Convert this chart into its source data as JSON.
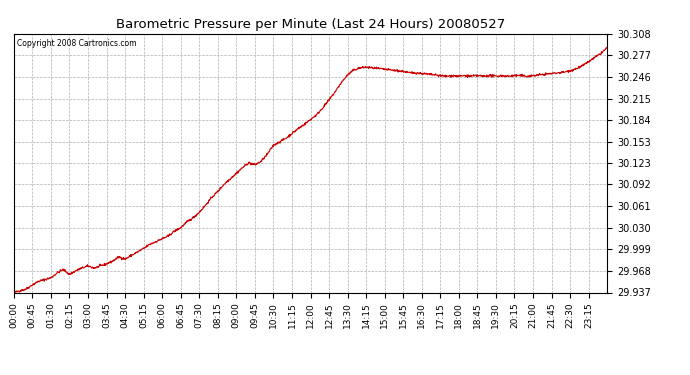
{
  "title": "Barometric Pressure per Minute (Last 24 Hours) 20080527",
  "copyright_text": "Copyright 2008 Cartronics.com",
  "line_color": "#cc0000",
  "background_color": "#ffffff",
  "grid_color": "#b0b0b0",
  "yticks": [
    29.937,
    29.968,
    29.999,
    30.03,
    30.061,
    30.092,
    30.123,
    30.153,
    30.184,
    30.215,
    30.246,
    30.277,
    30.308
  ],
  "ylim": [
    29.937,
    30.308
  ],
  "xtick_labels": [
    "00:00",
    "00:45",
    "01:30",
    "02:15",
    "03:00",
    "03:45",
    "04:30",
    "05:15",
    "06:00",
    "06:45",
    "07:30",
    "08:15",
    "09:00",
    "09:45",
    "10:30",
    "11:15",
    "12:00",
    "12:45",
    "13:30",
    "14:15",
    "15:00",
    "15:45",
    "16:30",
    "17:15",
    "18:00",
    "18:45",
    "19:30",
    "20:15",
    "21:00",
    "21:45",
    "22:30",
    "23:15"
  ],
  "key_points": [
    [
      0,
      29.937
    ],
    [
      30,
      29.942
    ],
    [
      45,
      29.948
    ],
    [
      60,
      29.953
    ],
    [
      90,
      29.958
    ],
    [
      105,
      29.965
    ],
    [
      120,
      29.97
    ],
    [
      135,
      29.963
    ],
    [
      150,
      29.968
    ],
    [
      165,
      29.972
    ],
    [
      180,
      29.975
    ],
    [
      195,
      29.972
    ],
    [
      210,
      29.975
    ],
    [
      225,
      29.978
    ],
    [
      240,
      29.982
    ],
    [
      255,
      29.988
    ],
    [
      270,
      29.985
    ],
    [
      285,
      29.99
    ],
    [
      300,
      29.995
    ],
    [
      315,
      30.0
    ],
    [
      330,
      30.006
    ],
    [
      345,
      30.01
    ],
    [
      360,
      30.014
    ],
    [
      375,
      30.018
    ],
    [
      390,
      30.025
    ],
    [
      405,
      30.03
    ],
    [
      420,
      30.038
    ],
    [
      435,
      30.044
    ],
    [
      450,
      30.052
    ],
    [
      465,
      30.062
    ],
    [
      480,
      30.073
    ],
    [
      495,
      30.082
    ],
    [
      510,
      30.092
    ],
    [
      525,
      30.1
    ],
    [
      540,
      30.108
    ],
    [
      555,
      30.116
    ],
    [
      570,
      30.123
    ],
    [
      585,
      30.12
    ],
    [
      600,
      30.125
    ],
    [
      615,
      30.135
    ],
    [
      630,
      30.148
    ],
    [
      645,
      30.153
    ],
    [
      660,
      30.158
    ],
    [
      675,
      30.165
    ],
    [
      690,
      30.172
    ],
    [
      705,
      30.178
    ],
    [
      720,
      30.185
    ],
    [
      735,
      30.192
    ],
    [
      750,
      30.202
    ],
    [
      765,
      30.213
    ],
    [
      780,
      30.225
    ],
    [
      795,
      30.238
    ],
    [
      810,
      30.249
    ],
    [
      825,
      30.256
    ],
    [
      840,
      30.259
    ],
    [
      855,
      30.26
    ],
    [
      870,
      30.259
    ],
    [
      885,
      30.258
    ],
    [
      900,
      30.257
    ],
    [
      915,
      30.256
    ],
    [
      930,
      30.255
    ],
    [
      945,
      30.254
    ],
    [
      960,
      30.252
    ],
    [
      975,
      30.252
    ],
    [
      990,
      30.251
    ],
    [
      1005,
      30.25
    ],
    [
      1020,
      30.249
    ],
    [
      1035,
      30.248
    ],
    [
      1050,
      30.247
    ],
    [
      1065,
      30.248
    ],
    [
      1080,
      30.247
    ],
    [
      1095,
      30.248
    ],
    [
      1110,
      30.247
    ],
    [
      1125,
      30.248
    ],
    [
      1140,
      30.247
    ],
    [
      1155,
      30.248
    ],
    [
      1170,
      30.247
    ],
    [
      1185,
      30.248
    ],
    [
      1200,
      30.247
    ],
    [
      1215,
      30.248
    ],
    [
      1230,
      30.248
    ],
    [
      1245,
      30.247
    ],
    [
      1260,
      30.248
    ],
    [
      1275,
      30.249
    ],
    [
      1290,
      30.25
    ],
    [
      1305,
      30.251
    ],
    [
      1320,
      30.252
    ],
    [
      1335,
      30.253
    ],
    [
      1350,
      30.255
    ],
    [
      1365,
      30.258
    ],
    [
      1380,
      30.262
    ],
    [
      1395,
      30.268
    ],
    [
      1410,
      30.274
    ],
    [
      1425,
      30.28
    ],
    [
      1440,
      30.288
    ],
    [
      1455,
      30.292
    ],
    [
      1460,
      30.295
    ],
    [
      1470,
      30.298
    ],
    [
      1480,
      30.302
    ],
    [
      1490,
      30.305
    ],
    [
      1500,
      30.308
    ]
  ]
}
